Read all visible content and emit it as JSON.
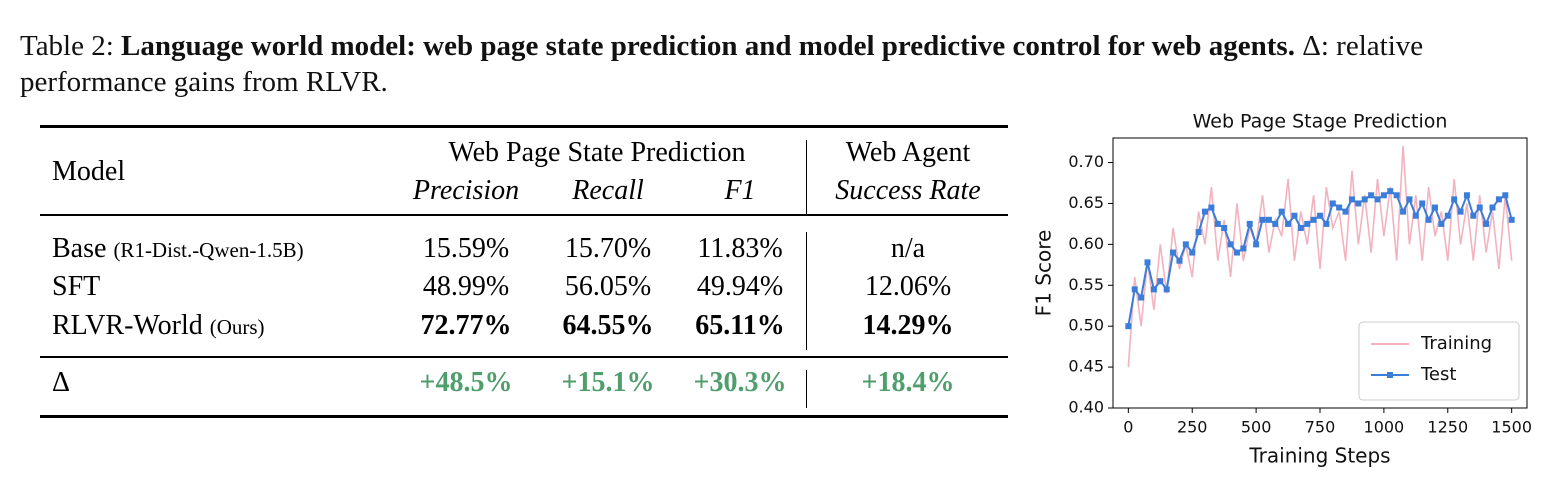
{
  "caption": {
    "label": "Table 2:",
    "bold": "Language world model: web page state prediction and model predictive control for web agents.",
    "rest": "Δ: relative performance gains from RLVR."
  },
  "table": {
    "group_headers": [
      "Web Page State Prediction",
      "Web Agent"
    ],
    "columns": [
      "Model",
      "Precision",
      "Recall",
      "F1",
      "Success Rate"
    ],
    "rows": [
      [
        "Base",
        "(R1-Dist.-Qwen-1.5B)",
        "15.59%",
        "15.70%",
        "11.83%",
        "n/a"
      ],
      [
        "SFT",
        "",
        "48.99%",
        "56.05%",
        "49.94%",
        "12.06%"
      ],
      [
        "RLVR-World",
        "(Ours)",
        "72.77%",
        "64.55%",
        "65.11%",
        "14.29%"
      ]
    ],
    "delta_row": [
      "Δ",
      "+48.5%",
      "+15.1%",
      "+30.3%",
      "+18.4%"
    ]
  },
  "chart_data": {
    "type": "line",
    "title": "Web Page Stage Prediction",
    "x_label": "Training Steps",
    "y_label": "F1 Score",
    "x": [
      0,
      25,
      50,
      75,
      100,
      125,
      150,
      175,
      200,
      225,
      250,
      275,
      300,
      325,
      350,
      375,
      400,
      425,
      450,
      475,
      500,
      525,
      550,
      575,
      600,
      625,
      650,
      675,
      700,
      725,
      750,
      775,
      800,
      825,
      850,
      875,
      900,
      925,
      950,
      975,
      1000,
      1025,
      1050,
      1075,
      1100,
      1125,
      1150,
      1175,
      1200,
      1225,
      1250,
      1275,
      1300,
      1325,
      1350,
      1375,
      1400,
      1425,
      1450,
      1475,
      1500
    ],
    "series": [
      {
        "name": "Training",
        "color": "#f2b3bf",
        "marker": false,
        "values": [
          0.45,
          0.56,
          0.5,
          0.58,
          0.52,
          0.6,
          0.54,
          0.62,
          0.57,
          0.6,
          0.56,
          0.64,
          0.6,
          0.67,
          0.58,
          0.63,
          0.56,
          0.65,
          0.58,
          0.62,
          0.6,
          0.66,
          0.59,
          0.63,
          0.61,
          0.68,
          0.58,
          0.64,
          0.6,
          0.66,
          0.57,
          0.67,
          0.62,
          0.64,
          0.58,
          0.69,
          0.6,
          0.66,
          0.59,
          0.68,
          0.61,
          0.67,
          0.58,
          0.72,
          0.6,
          0.66,
          0.58,
          0.67,
          0.61,
          0.64,
          0.58,
          0.68,
          0.6,
          0.65,
          0.58,
          0.66,
          0.59,
          0.64,
          0.57,
          0.66,
          0.58
        ]
      },
      {
        "name": "Test",
        "color": "#3b7dd8",
        "marker": true,
        "values": [
          0.5,
          0.545,
          0.535,
          0.578,
          0.545,
          0.555,
          0.545,
          0.59,
          0.58,
          0.6,
          0.59,
          0.615,
          0.64,
          0.645,
          0.625,
          0.62,
          0.6,
          0.59,
          0.595,
          0.625,
          0.6,
          0.63,
          0.63,
          0.625,
          0.64,
          0.625,
          0.635,
          0.62,
          0.625,
          0.63,
          0.635,
          0.625,
          0.65,
          0.645,
          0.64,
          0.655,
          0.65,
          0.655,
          0.66,
          0.655,
          0.66,
          0.665,
          0.66,
          0.64,
          0.655,
          0.635,
          0.65,
          0.63,
          0.645,
          0.625,
          0.635,
          0.655,
          0.64,
          0.66,
          0.635,
          0.645,
          0.625,
          0.645,
          0.655,
          0.66,
          0.63
        ]
      }
    ],
    "xlim": [
      -60,
      1560
    ],
    "ylim": [
      0.4,
      0.73
    ],
    "xticks": [
      0,
      250,
      500,
      750,
      1000,
      1250,
      1500
    ],
    "yticks": [
      {
        "value": 0.4,
        "label": "0.40"
      },
      0.45,
      {
        "value": 0.5,
        "label": "0.50"
      },
      0.55,
      {
        "value": 0.6,
        "label": "0.60"
      },
      0.65,
      {
        "value": 0.7,
        "label": "0.70"
      }
    ],
    "legend": "lower right"
  }
}
